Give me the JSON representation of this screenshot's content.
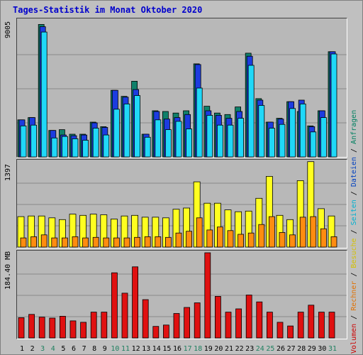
{
  "title": "Tages-Statistik im Monat Oktober 2020",
  "legend": [
    {
      "label": "Volumen",
      "color": "#cc0000"
    },
    {
      "label": "Rechner",
      "color": "#e07000"
    },
    {
      "label": "Besuche",
      "color": "#d4c000"
    },
    {
      "label": "Seiten",
      "color": "#00b0d0"
    },
    {
      "label": "Dateien",
      "color": "#0040c0"
    },
    {
      "label": "Anfragen",
      "color": "#008060"
    }
  ],
  "colors": {
    "anfragen": "#10806a",
    "dateien": "#1c3ce0",
    "seiten": "#20d8f8",
    "besuche": "#ffff20",
    "rechner": "#ff8c10",
    "volumen": "#e01010"
  },
  "chart_data": [
    {
      "type": "bar",
      "ylabel": "9005",
      "ymax": 9005,
      "categories": [
        "1",
        "2",
        "3",
        "4",
        "5",
        "6",
        "7",
        "8",
        "9",
        "10",
        "11",
        "12",
        "13",
        "14",
        "15",
        "16",
        "17",
        "18",
        "19",
        "20",
        "21",
        "22",
        "23",
        "24",
        "25",
        "26",
        "27",
        "28",
        "29",
        "30",
        "31"
      ],
      "weekend_days": [
        "3",
        "4",
        "10",
        "11",
        "17",
        "18",
        "24",
        "25",
        "31"
      ],
      "series": [
        {
          "name": "Anfragen",
          "values": [
            2450,
            2600,
            8750,
            1750,
            1800,
            1500,
            1500,
            2300,
            2000,
            4400,
            4000,
            5000,
            1500,
            3050,
            3000,
            2900,
            3050,
            6150,
            3350,
            2900,
            2800,
            3300,
            6850,
            3850,
            2300,
            2550,
            3650,
            3000,
            2050,
            3050,
            6950
          ]
        },
        {
          "name": "Dateien",
          "values": [
            2450,
            2600,
            8600,
            1750,
            1450,
            1400,
            1450,
            2250,
            1950,
            4400,
            3950,
            4450,
            1500,
            3000,
            2500,
            2600,
            2800,
            6100,
            3050,
            2750,
            2550,
            3000,
            6650,
            3750,
            2300,
            2500,
            3650,
            3750,
            2000,
            3050,
            6950
          ]
        },
        {
          "name": "Seiten",
          "values": [
            2050,
            2100,
            8250,
            1250,
            1350,
            1200,
            1100,
            1900,
            1450,
            3150,
            3500,
            4050,
            1300,
            2450,
            1800,
            2350,
            1850,
            4550,
            2750,
            2100,
            2100,
            2550,
            6050,
            3400,
            1900,
            2150,
            3200,
            3500,
            1650,
            2600,
            6800
          ]
        }
      ]
    },
    {
      "type": "bar",
      "ylabel": "1397",
      "ymax": 1397,
      "categories": [
        "1",
        "2",
        "3",
        "4",
        "5",
        "6",
        "7",
        "8",
        "9",
        "10",
        "11",
        "12",
        "13",
        "14",
        "15",
        "16",
        "17",
        "18",
        "19",
        "20",
        "21",
        "22",
        "23",
        "24",
        "25",
        "26",
        "27",
        "28",
        "29",
        "30",
        "31"
      ],
      "series": [
        {
          "name": "Besuche",
          "values": [
            500,
            510,
            510,
            480,
            450,
            540,
            520,
            540,
            530,
            460,
            510,
            520,
            490,
            490,
            480,
            620,
            640,
            1070,
            720,
            720,
            610,
            580,
            590,
            800,
            1160,
            520,
            450,
            1090,
            1400,
            630,
            510
          ]
        },
        {
          "name": "Rechner",
          "values": [
            150,
            170,
            200,
            150,
            150,
            170,
            150,
            160,
            150,
            150,
            150,
            160,
            170,
            170,
            160,
            230,
            260,
            480,
            280,
            330,
            270,
            210,
            230,
            370,
            500,
            240,
            200,
            490,
            500,
            300,
            170
          ]
        }
      ]
    },
    {
      "type": "bar",
      "ylabel": "184.40 MB",
      "ymax": 184.4,
      "categories": [
        "1",
        "2",
        "3",
        "4",
        "5",
        "6",
        "7",
        "8",
        "9",
        "10",
        "11",
        "12",
        "13",
        "14",
        "15",
        "16",
        "17",
        "18",
        "19",
        "20",
        "21",
        "22",
        "23",
        "24",
        "25",
        "26",
        "27",
        "28",
        "29",
        "30",
        "31"
      ],
      "series": [
        {
          "name": "Volumen",
          "values": [
            44,
            51,
            45,
            43,
            47,
            37,
            34,
            56,
            56,
            141,
            97,
            154,
            83,
            25,
            28,
            53,
            66,
            76,
            187,
            90,
            56,
            63,
            93,
            78,
            56,
            34,
            26,
            56,
            71,
            56,
            56
          ]
        }
      ]
    }
  ]
}
